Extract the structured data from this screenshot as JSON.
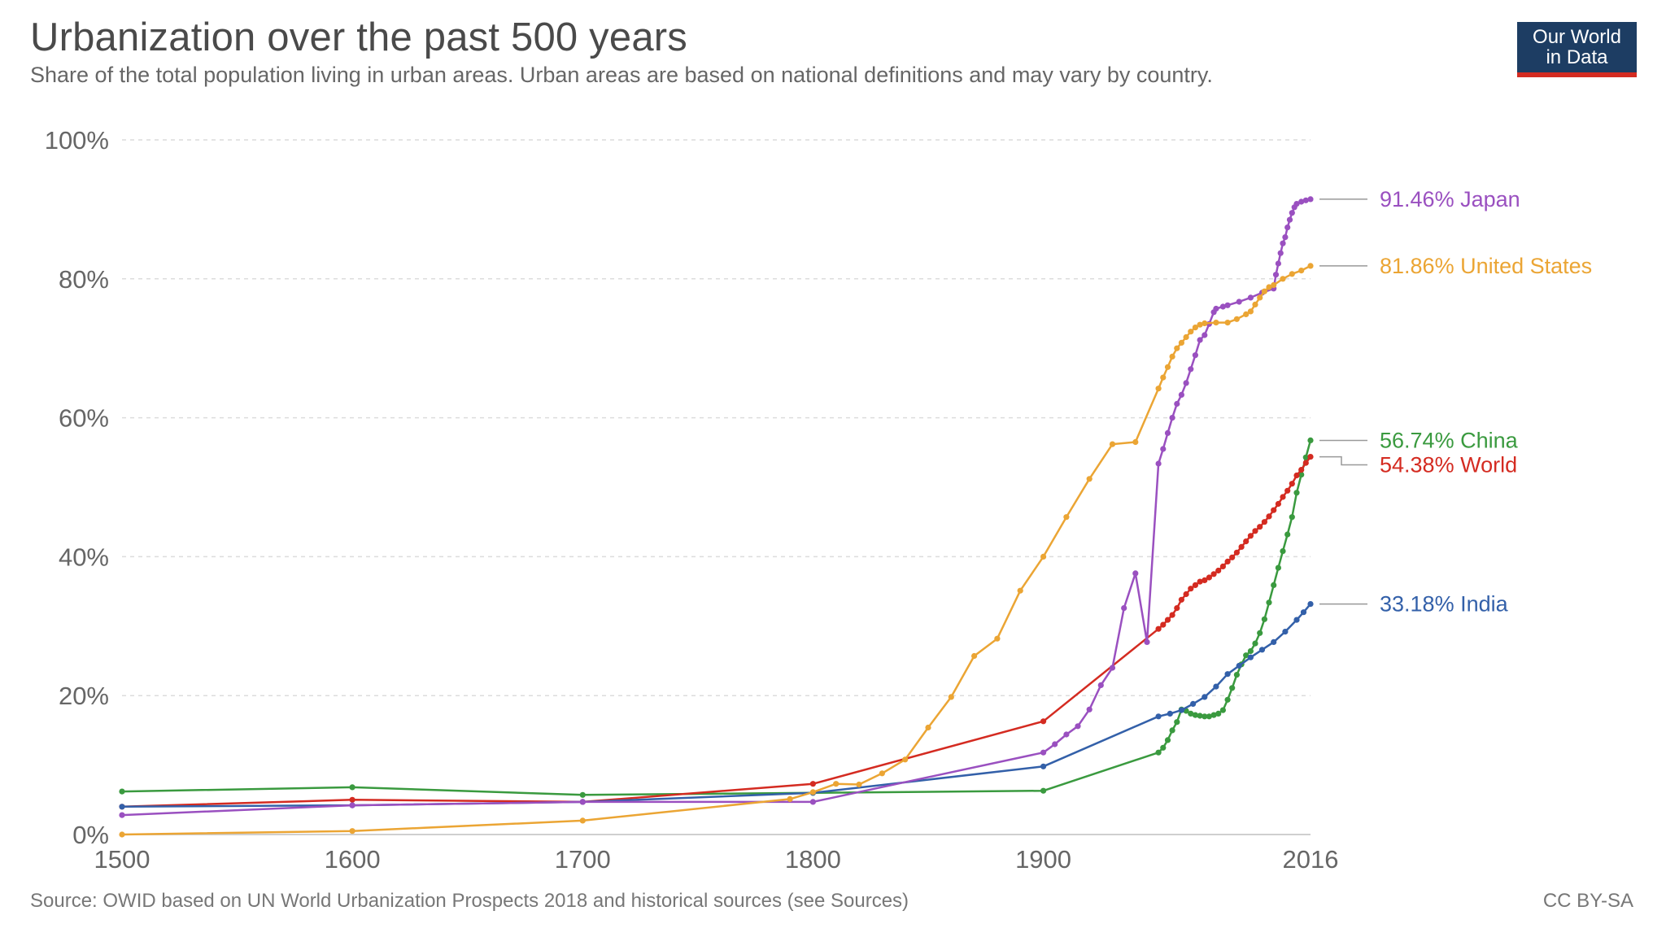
{
  "header": {
    "title": "Urbanization over the past 500 years",
    "subtitle": "Share of the total population living in urban areas. Urban areas are based on national definitions and may vary by country.",
    "logo_line1": "Our World",
    "logo_line2": "in Data"
  },
  "footer": {
    "source": "Source: OWID based on UN World Urbanization Prospects 2018 and historical sources (see Sources)",
    "license": "CC BY-SA"
  },
  "chart_data": {
    "type": "line",
    "title": "Urbanization over the past 500 years",
    "subtitle": "Share of the total population living in urban areas. Urban areas are based on national definitions and may vary by country.",
    "xlabel": "",
    "ylabel": "",
    "xlim": [
      1500,
      2016
    ],
    "ylim": [
      0,
      100
    ],
    "x_ticks": [
      "1500",
      "1600",
      "1700",
      "1800",
      "1900",
      "2016"
    ],
    "x_tick_values": [
      1500,
      1600,
      1700,
      1800,
      1900,
      2016
    ],
    "y_ticks": [
      "0%",
      "20%",
      "40%",
      "60%",
      "80%",
      "100%"
    ],
    "y_tick_values": [
      0,
      20,
      40,
      60,
      80,
      100
    ],
    "grid": "horizontal dashed",
    "legend": "inline labels at line ends (right)",
    "series": [
      {
        "name": "China",
        "end_label": "56.74% China",
        "color": "#3a9a3f",
        "points": [
          [
            1500,
            6.2
          ],
          [
            1600,
            6.8
          ],
          [
            1700,
            5.7
          ],
          [
            1800,
            6.0
          ],
          [
            1900,
            6.3
          ],
          [
            1950,
            11.8
          ],
          [
            1952,
            12.5
          ],
          [
            1954,
            13.6
          ],
          [
            1956,
            15.0
          ],
          [
            1958,
            16.2
          ],
          [
            1960,
            18.0
          ],
          [
            1962,
            17.8
          ],
          [
            1964,
            17.4
          ],
          [
            1966,
            17.2
          ],
          [
            1968,
            17.1
          ],
          [
            1970,
            17.0
          ],
          [
            1972,
            17.0
          ],
          [
            1974,
            17.2
          ],
          [
            1976,
            17.4
          ],
          [
            1978,
            17.9
          ],
          [
            1980,
            19.4
          ],
          [
            1982,
            21.1
          ],
          [
            1984,
            23.0
          ],
          [
            1986,
            24.5
          ],
          [
            1988,
            25.8
          ],
          [
            1990,
            26.4
          ],
          [
            1992,
            27.5
          ],
          [
            1994,
            29.0
          ],
          [
            1996,
            31.0
          ],
          [
            1998,
            33.4
          ],
          [
            2000,
            35.9
          ],
          [
            2002,
            38.4
          ],
          [
            2004,
            40.8
          ],
          [
            2006,
            43.2
          ],
          [
            2008,
            45.7
          ],
          [
            2010,
            49.2
          ],
          [
            2012,
            51.8
          ],
          [
            2014,
            54.3
          ],
          [
            2016,
            56.74
          ]
        ]
      },
      {
        "name": "World",
        "end_label": "54.38% World",
        "color": "#d42b21",
        "points": [
          [
            1500,
            4.0
          ],
          [
            1600,
            5.0
          ],
          [
            1700,
            4.7
          ],
          [
            1800,
            7.3
          ],
          [
            1900,
            16.3
          ],
          [
            1950,
            29.6
          ],
          [
            1952,
            30.2
          ],
          [
            1954,
            30.9
          ],
          [
            1956,
            31.6
          ],
          [
            1958,
            32.6
          ],
          [
            1960,
            33.8
          ],
          [
            1962,
            34.6
          ],
          [
            1964,
            35.4
          ],
          [
            1966,
            35.9
          ],
          [
            1968,
            36.4
          ],
          [
            1970,
            36.6
          ],
          [
            1972,
            37.0
          ],
          [
            1974,
            37.5
          ],
          [
            1976,
            38.0
          ],
          [
            1978,
            38.6
          ],
          [
            1980,
            39.3
          ],
          [
            1982,
            39.9
          ],
          [
            1984,
            40.6
          ],
          [
            1986,
            41.4
          ],
          [
            1988,
            42.2
          ],
          [
            1990,
            43.0
          ],
          [
            1992,
            43.7
          ],
          [
            1994,
            44.3
          ],
          [
            1996,
            45.0
          ],
          [
            1998,
            45.8
          ],
          [
            2000,
            46.7
          ],
          [
            2002,
            47.6
          ],
          [
            2004,
            48.6
          ],
          [
            2006,
            49.5
          ],
          [
            2008,
            50.5
          ],
          [
            2010,
            51.7
          ],
          [
            2012,
            52.5
          ],
          [
            2014,
            53.5
          ],
          [
            2016,
            54.38
          ]
        ]
      },
      {
        "name": "India",
        "end_label": "33.18% India",
        "color": "#3360a9",
        "points": [
          [
            1500,
            4.0
          ],
          [
            1600,
            4.2
          ],
          [
            1700,
            4.7
          ],
          [
            1800,
            6.0
          ],
          [
            1900,
            9.8
          ],
          [
            1950,
            17.0
          ],
          [
            1955,
            17.4
          ],
          [
            1960,
            17.9
          ],
          [
            1965,
            18.8
          ],
          [
            1970,
            19.8
          ],
          [
            1975,
            21.3
          ],
          [
            1980,
            23.1
          ],
          [
            1985,
            24.3
          ],
          [
            1990,
            25.5
          ],
          [
            1995,
            26.6
          ],
          [
            2000,
            27.7
          ],
          [
            2005,
            29.2
          ],
          [
            2010,
            30.9
          ],
          [
            2013,
            32.0
          ],
          [
            2016,
            33.18
          ]
        ]
      },
      {
        "name": "Japan",
        "end_label": "91.46% Japan",
        "color": "#9a50c0",
        "points": [
          [
            1500,
            2.8
          ],
          [
            1600,
            4.2
          ],
          [
            1700,
            4.7
          ],
          [
            1800,
            4.7
          ],
          [
            1900,
            11.8
          ],
          [
            1905,
            13.0
          ],
          [
            1910,
            14.4
          ],
          [
            1915,
            15.6
          ],
          [
            1920,
            18.0
          ],
          [
            1925,
            21.5
          ],
          [
            1930,
            24.0
          ],
          [
            1935,
            32.6
          ],
          [
            1940,
            37.6
          ],
          [
            1945,
            27.7
          ],
          [
            1950,
            53.4
          ],
          [
            1952,
            55.5
          ],
          [
            1954,
            57.8
          ],
          [
            1956,
            60.0
          ],
          [
            1958,
            62.0
          ],
          [
            1960,
            63.3
          ],
          [
            1962,
            65.0
          ],
          [
            1964,
            67.0
          ],
          [
            1966,
            69.0
          ],
          [
            1968,
            71.2
          ],
          [
            1970,
            71.9
          ],
          [
            1972,
            73.5
          ],
          [
            1974,
            75.2
          ],
          [
            1975,
            75.7
          ],
          [
            1978,
            76.0
          ],
          [
            1980,
            76.2
          ],
          [
            1985,
            76.7
          ],
          [
            1990,
            77.3
          ],
          [
            1995,
            78.0
          ],
          [
            2000,
            78.6
          ],
          [
            2001,
            80.6
          ],
          [
            2002,
            82.2
          ],
          [
            2003,
            83.7
          ],
          [
            2004,
            85.1
          ],
          [
            2005,
            86.0
          ],
          [
            2006,
            87.4
          ],
          [
            2007,
            88.5
          ],
          [
            2008,
            89.5
          ],
          [
            2009,
            90.3
          ],
          [
            2010,
            90.8
          ],
          [
            2012,
            91.1
          ],
          [
            2014,
            91.3
          ],
          [
            2016,
            91.46
          ]
        ]
      },
      {
        "name": "United States",
        "end_label": "81.86% United States",
        "color": "#eba534",
        "points": [
          [
            1500,
            0.0
          ],
          [
            1600,
            0.5
          ],
          [
            1700,
            2.0
          ],
          [
            1790,
            5.1
          ],
          [
            1800,
            6.1
          ],
          [
            1810,
            7.3
          ],
          [
            1820,
            7.2
          ],
          [
            1830,
            8.8
          ],
          [
            1840,
            10.8
          ],
          [
            1850,
            15.4
          ],
          [
            1860,
            19.8
          ],
          [
            1870,
            25.7
          ],
          [
            1880,
            28.2
          ],
          [
            1890,
            35.1
          ],
          [
            1900,
            40.0
          ],
          [
            1910,
            45.7
          ],
          [
            1920,
            51.2
          ],
          [
            1930,
            56.2
          ],
          [
            1940,
            56.5
          ],
          [
            1950,
            64.2
          ],
          [
            1952,
            65.8
          ],
          [
            1954,
            67.3
          ],
          [
            1956,
            68.8
          ],
          [
            1958,
            70.0
          ],
          [
            1960,
            70.8
          ],
          [
            1962,
            71.6
          ],
          [
            1964,
            72.4
          ],
          [
            1966,
            73.0
          ],
          [
            1968,
            73.4
          ],
          [
            1970,
            73.6
          ],
          [
            1975,
            73.7
          ],
          [
            1980,
            73.7
          ],
          [
            1984,
            74.2
          ],
          [
            1988,
            74.9
          ],
          [
            1990,
            75.3
          ],
          [
            1992,
            76.3
          ],
          [
            1994,
            77.3
          ],
          [
            1996,
            78.2
          ],
          [
            1998,
            78.8
          ],
          [
            2000,
            79.1
          ],
          [
            2004,
            80.0
          ],
          [
            2008,
            80.7
          ],
          [
            2012,
            81.2
          ],
          [
            2016,
            81.86
          ]
        ]
      }
    ]
  }
}
